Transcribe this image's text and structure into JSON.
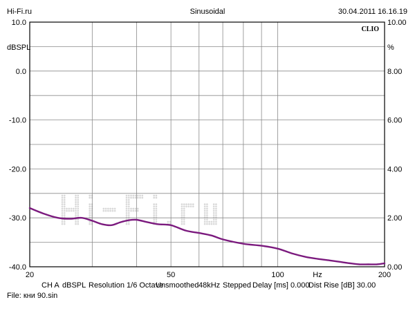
{
  "header": {
    "site": "Hi-Fi.ru",
    "mode": "Sinusoidal",
    "timestamp": "30.04.2011 16.16.19",
    "brand": "CLIO"
  },
  "footer": {
    "info_items": [
      "CH A",
      "dBSPL",
      "Resolution 1/6 Octave",
      "Unsmoothed",
      "48kHz",
      "Stepped",
      "Delay [ms] 0.000",
      "Dist Rise [dB] 30.00"
    ],
    "file": "File: кни 90.sin"
  },
  "colors": {
    "curve": "#7b1a7e",
    "grid": "#8a8a8a",
    "watermark": "#d9d9d9"
  },
  "watermark_text": "Hi-Fi.ru",
  "chart_data": {
    "type": "line",
    "x_scale": "log",
    "xlim": [
      20,
      200
    ],
    "ylim_left": [
      -40,
      10
    ],
    "ylim_right": [
      0,
      10
    ],
    "left_unit": "dBSPL",
    "right_unit": "%",
    "x_unit": "Hz",
    "x_ticks": [
      {
        "value": 20,
        "label": "20"
      },
      {
        "value": 50,
        "label": "50"
      },
      {
        "value": 100,
        "label": "100"
      },
      {
        "value": 200,
        "label": "200"
      }
    ],
    "x_minor": [
      30,
      40,
      60,
      70,
      80,
      90
    ],
    "y_left_ticks": [
      {
        "value": 10,
        "label": "10.0"
      },
      {
        "value": 0,
        "label": "0.0"
      },
      {
        "value": -10,
        "label": "-10.0"
      },
      {
        "value": -20,
        "label": "-20.0"
      },
      {
        "value": -30,
        "label": "-30.0"
      },
      {
        "value": -40,
        "label": "-40.0"
      }
    ],
    "y_right_ticks": [
      {
        "value": 10,
        "label": "10.00"
      },
      {
        "value": 8,
        "label": "8.00"
      },
      {
        "value": 6,
        "label": "6.00"
      },
      {
        "value": 4,
        "label": "4.00"
      },
      {
        "value": 2,
        "label": "2.00"
      },
      {
        "value": 0,
        "label": "0.00"
      }
    ],
    "grid_y_left": [
      10,
      5,
      0,
      -5,
      -10,
      -15,
      -20,
      -25,
      -30,
      -35,
      -40
    ],
    "series": [
      {
        "x": [
          20,
          22,
          24,
          26,
          28,
          30,
          32,
          34,
          36,
          38,
          40,
          43,
          46,
          50,
          55,
          60,
          65,
          70,
          80,
          90,
          100,
          110,
          120,
          130,
          140,
          150,
          160,
          170,
          180,
          190,
          200
        ],
        "y": [
          -28.0,
          -29.2,
          -30.0,
          -30.2,
          -30.0,
          -30.6,
          -31.3,
          -31.5,
          -30.9,
          -30.5,
          -30.4,
          -30.9,
          -31.3,
          -31.5,
          -32.6,
          -33.1,
          -33.6,
          -34.4,
          -35.3,
          -35.7,
          -36.3,
          -37.3,
          -38.0,
          -38.4,
          -38.7,
          -39.0,
          -39.3,
          -39.5,
          -39.5,
          -39.5,
          -39.3
        ]
      }
    ]
  }
}
